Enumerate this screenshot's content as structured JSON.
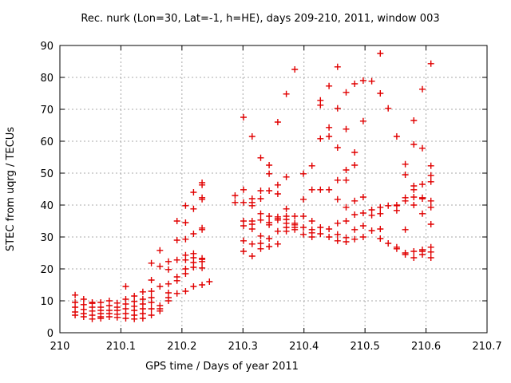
{
  "title": "Rec. nurk (Lon=30, Lat=-1, h=HE), days 209-210, 2011, window 003",
  "chart_data": {
    "type": "scatter",
    "title": "Rec. nurk (Lon=30, Lat=-1, h=HE), days 209-210, 2011, window 003",
    "xlabel": "GPS time / Days of year 2011",
    "ylabel": "STEC from uqrg / TECUs",
    "xlim": [
      210,
      210.7
    ],
    "ylim": [
      0,
      90
    ],
    "xtick_values": [
      210,
      210.1,
      210.2,
      210.3,
      210.4,
      210.5,
      210.6,
      210.7
    ],
    "xtick_labels": [
      "210",
      "210.1",
      "210.2",
      "210.3",
      "210.4",
      "210.5",
      "210.6",
      "210.7"
    ],
    "ytick_values": [
      0,
      10,
      20,
      30,
      40,
      50,
      60,
      70,
      80,
      90
    ],
    "ytick_labels": [
      "0",
      "10",
      "20",
      "30",
      "40",
      "50",
      "60",
      "70",
      "80",
      "90"
    ],
    "grid": true,
    "legend": "none",
    "marker": "plus",
    "marker_color": "#e10000",
    "grid_color": "#a8a8a8",
    "axis_color": "#000000",
    "columns": [
      {
        "t": 210.025,
        "v": [
          11.8,
          9.5,
          8.0,
          6.5,
          5.5
        ]
      },
      {
        "t": 210.039,
        "v": [
          10.5,
          8.8,
          7.3,
          6.0,
          5.0
        ]
      },
      {
        "t": 210.053,
        "v": [
          9.5,
          9.2,
          8.0,
          6.8,
          5.5,
          4.3
        ]
      },
      {
        "t": 210.067,
        "v": [
          9.5,
          8.0,
          7.0,
          6.0,
          5.0,
          4.5
        ]
      },
      {
        "t": 210.081,
        "v": [
          10.0,
          8.5,
          7.0,
          6.0,
          5.0
        ]
      },
      {
        "t": 210.094,
        "v": [
          9.3,
          8.0,
          7.0,
          5.8,
          4.8
        ]
      },
      {
        "t": 210.108,
        "v": [
          14.5,
          10.5,
          9.0,
          7.5,
          6.0,
          4.5
        ]
      },
      {
        "t": 210.122,
        "v": [
          11.5,
          9.8,
          8.3,
          7.0,
          5.5,
          4.3
        ]
      },
      {
        "t": 210.136,
        "v": [
          12.8,
          10.5,
          9.0,
          7.5,
          6.0,
          4.5
        ]
      },
      {
        "t": 210.15,
        "v": [
          21.8,
          16.5,
          13.0,
          11.0,
          9.5,
          7.5,
          5.5
        ]
      },
      {
        "t": 210.164,
        "v": [
          25.8,
          20.8,
          14.5,
          8.5,
          7.5,
          6.8
        ]
      },
      {
        "t": 210.178,
        "v": [
          22.3,
          19.8,
          15.3,
          12.5,
          11.0,
          10.0
        ]
      },
      {
        "t": 210.192,
        "v": [
          35.0,
          29.0,
          22.8,
          17.5,
          16.3,
          12.3
        ]
      },
      {
        "t": 210.206,
        "v": [
          39.8,
          34.5,
          29.3,
          24.3,
          22.8,
          20.0,
          18.5,
          13.0
        ]
      },
      {
        "t": 210.219,
        "v": [
          44.0,
          38.8,
          31.0,
          24.8,
          23.5,
          22.0,
          20.5,
          14.5
        ]
      },
      {
        "t": 210.233,
        "v": [
          47.0,
          46.3,
          42.3,
          41.8,
          32.8,
          32.3,
          23.3,
          23.0,
          22.3,
          20.3,
          15.0
        ]
      },
      {
        "t": 210.245,
        "v": [
          16.0
        ]
      },
      {
        "t": 210.287,
        "v": [
          43.0,
          40.8
        ]
      },
      {
        "t": 210.301,
        "v": [
          67.5,
          44.8,
          40.8,
          35.0,
          33.5,
          28.8,
          25.5
        ]
      },
      {
        "t": 210.315,
        "v": [
          61.5,
          42.0,
          40.8,
          39.8,
          35.0,
          34.0,
          32.5,
          27.8,
          24.0
        ]
      },
      {
        "t": 210.329,
        "v": [
          54.8,
          44.5,
          42.0,
          37.3,
          35.3,
          30.3,
          28.0,
          26.3
        ]
      },
      {
        "t": 210.343,
        "v": [
          52.5,
          49.8,
          44.5,
          36.5,
          34.5,
          33.8,
          29.5,
          27.0
        ]
      },
      {
        "t": 210.357,
        "v": [
          66.0,
          46.3,
          43.5,
          36.3,
          35.8,
          35.3,
          31.8,
          27.8
        ]
      },
      {
        "t": 210.371,
        "v": [
          74.8,
          48.8,
          38.8,
          36.5,
          35.5,
          34.3,
          33.0,
          31.8
        ]
      },
      {
        "t": 210.385,
        "v": [
          82.5,
          36.5,
          34.3,
          33.8,
          33.0,
          32.3
        ]
      },
      {
        "t": 210.399,
        "v": [
          49.8,
          41.8,
          36.5,
          33.0,
          30.8
        ]
      },
      {
        "t": 210.413,
        "v": [
          52.3,
          44.8,
          35.0,
          32.3,
          31.3,
          30.0
        ]
      },
      {
        "t": 210.427,
        "v": [
          72.8,
          71.3,
          60.8,
          44.8,
          33.0,
          31.0,
          31.0
        ]
      },
      {
        "t": 210.441,
        "v": [
          77.3,
          64.3,
          61.5,
          44.8,
          32.5,
          30.0
        ]
      },
      {
        "t": 210.455,
        "v": [
          83.3,
          70.3,
          58.0,
          47.8,
          41.8,
          34.3,
          30.8,
          28.8
        ]
      },
      {
        "t": 210.469,
        "v": [
          75.3,
          63.8,
          51.0,
          47.8,
          39.3,
          35.0,
          29.8,
          28.5
        ]
      },
      {
        "t": 210.483,
        "v": [
          78.0,
          56.5,
          52.5,
          41.3,
          37.0,
          32.3,
          29.3
        ]
      },
      {
        "t": 210.497,
        "v": [
          79.0,
          66.3,
          42.5,
          37.5,
          33.5,
          30.0
        ]
      },
      {
        "t": 210.511,
        "v": [
          78.8,
          38.5,
          36.8,
          32.0
        ]
      },
      {
        "t": 210.525,
        "v": [
          87.5,
          75.0,
          39.3,
          37.3,
          32.5,
          29.5
        ]
      },
      {
        "t": 210.538,
        "v": [
          70.3,
          39.8,
          28.0
        ]
      },
      {
        "t": 210.552,
        "v": [
          61.5,
          40.0,
          39.8,
          38.3,
          26.8,
          26.3
        ]
      },
      {
        "t": 210.566,
        "v": [
          52.8,
          49.5,
          42.3,
          41.3,
          32.3,
          25.0,
          24.5
        ]
      },
      {
        "t": 210.58,
        "v": [
          66.5,
          59.0,
          46.0,
          44.8,
          42.5,
          40.0,
          25.5,
          23.5
        ]
      },
      {
        "t": 210.594,
        "v": [
          76.3,
          57.8,
          46.5,
          42.3,
          42.0,
          37.3,
          26.0,
          25.5,
          24.5
        ]
      },
      {
        "t": 210.608,
        "v": [
          84.3,
          52.3,
          49.3,
          47.3,
          41.3,
          39.3,
          34.0,
          26.8,
          25.3,
          23.5
        ]
      }
    ]
  }
}
